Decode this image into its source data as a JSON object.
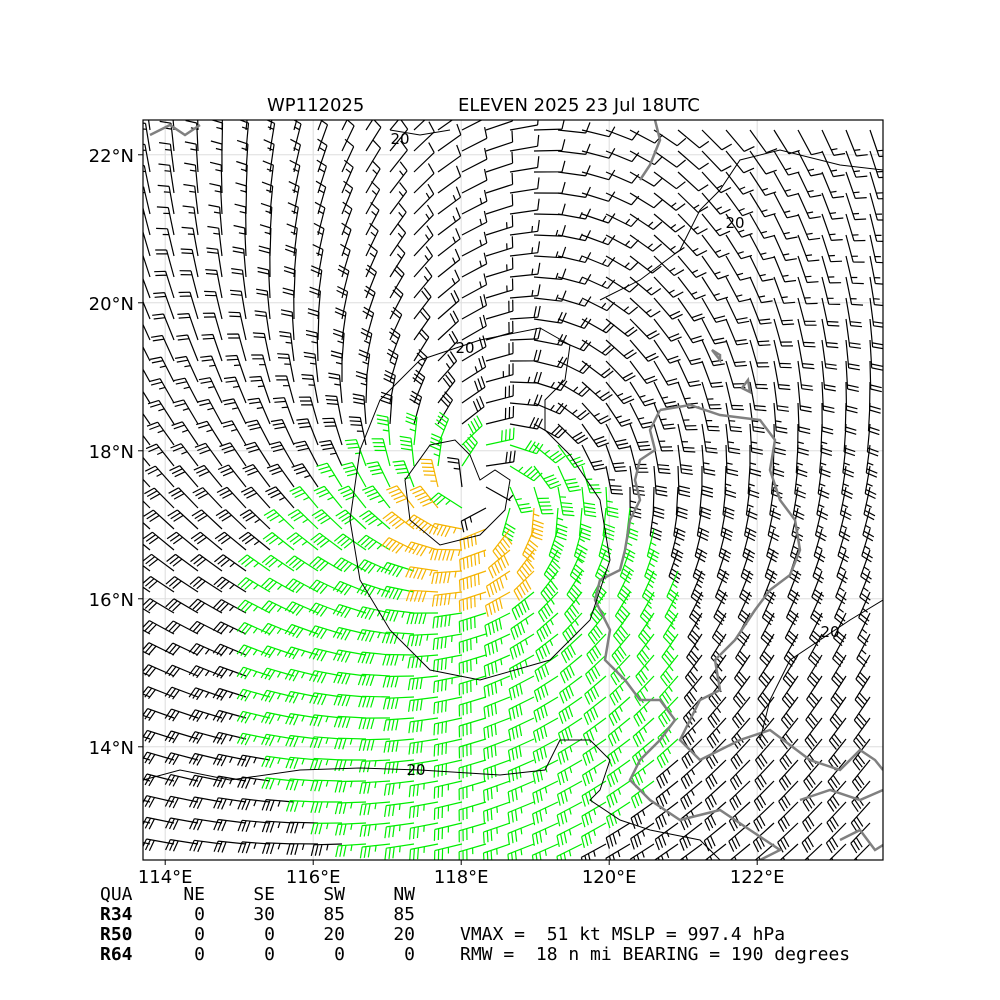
{
  "map": {
    "title_left": "WP112025",
    "title_right": "ELEVEN 2025 23 Jul 18UTC",
    "xlim": [
      113.7,
      123.7
    ],
    "ylim": [
      12.47,
      22.47
    ],
    "xticks": [
      {
        "value": 114,
        "label": "114°E"
      },
      {
        "value": 116,
        "label": "116°E"
      },
      {
        "value": 118,
        "label": "118°E"
      },
      {
        "value": 120,
        "label": "120°E"
      },
      {
        "value": 122,
        "label": "122°E"
      }
    ],
    "yticks": [
      {
        "value": 14,
        "label": "14°N"
      },
      {
        "value": 16,
        "label": "16°N"
      },
      {
        "value": 18,
        "label": "18°N"
      },
      {
        "value": 20,
        "label": "20°N"
      },
      {
        "value": 22,
        "label": "22°N"
      }
    ],
    "grid": true,
    "contour_labels": [
      "20",
      "20",
      "20",
      "20",
      "20"
    ]
  },
  "table": {
    "header": [
      "QUA",
      "NE",
      "SE",
      "SW",
      "NW"
    ],
    "rows": [
      [
        "R34",
        0,
        30,
        85,
        85
      ],
      [
        "R50",
        0,
        0,
        20,
        20
      ],
      [
        "R64",
        0,
        0,
        0,
        0
      ]
    ]
  },
  "info": [
    "VMAX =  51 kt MSLP = 997.4 hPa",
    "RMW =  18 n mi BEARING = 190 degrees"
  ]
}
